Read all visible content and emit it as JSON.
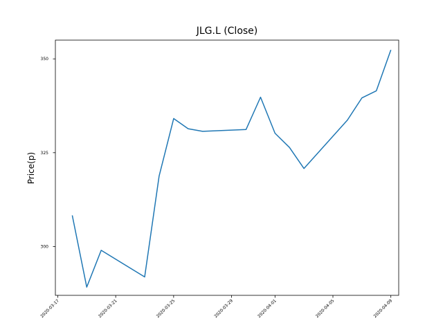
{
  "chart_data": {
    "type": "line",
    "title": "JLG.L (Close)",
    "xlabel": "",
    "ylabel": "Price(p)",
    "xlim": [
      "2020-03-16T20:00",
      "2020-04-09T13:00"
    ],
    "ylim": [
      287,
      355
    ],
    "grid": false,
    "x_ticks": [
      "2020-03-17",
      "2020-03-21",
      "2020-03-25",
      "2020-03-29",
      "2020-04-01",
      "2020-04-05",
      "2020-04-09"
    ],
    "y_ticks": [
      300,
      325,
      350
    ],
    "series": [
      {
        "color": "#1f77b4",
        "x": [
          "2020-03-18",
          "2020-03-19",
          "2020-03-20",
          "2020-03-23",
          "2020-03-24",
          "2020-03-25",
          "2020-03-26",
          "2020-03-27",
          "2020-03-30",
          "2020-03-31",
          "2020-04-01",
          "2020-04-02",
          "2020-04-03",
          "2020-04-06",
          "2020-04-07",
          "2020-04-08",
          "2020-04-09"
        ],
        "y": [
          308.3,
          289.2,
          299,
          291.9,
          318.8,
          334.1,
          331.4,
          330.7,
          331.2,
          339.8,
          330.2,
          326.4,
          320.8,
          333.7,
          339.6,
          341.5,
          352.4
        ]
      }
    ]
  }
}
